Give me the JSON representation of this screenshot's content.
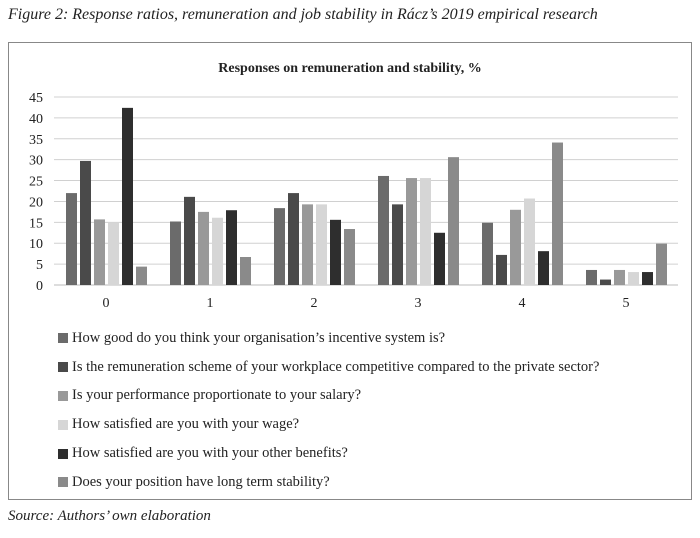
{
  "caption": "Figure 2: Response ratios, remuneration and job stability in Rácz’s 2019 empirical research",
  "source": "Source: Authors’ own elaboration",
  "chart_data": {
    "type": "bar",
    "title": "Responses on remuneration and stability, %",
    "xlabel": "",
    "ylabel": "",
    "ylim": [
      0,
      45
    ],
    "yticks": [
      0,
      5,
      10,
      15,
      20,
      25,
      30,
      35,
      40,
      45
    ],
    "grid": true,
    "legend_position": "bottom",
    "categories": [
      "0",
      "1",
      "2",
      "3",
      "4",
      "5"
    ],
    "series": [
      {
        "name": "How good do you think your organisation’s incentive system is?",
        "color": "#6b6b6b",
        "values": [
          22.0,
          15.2,
          18.4,
          26.1,
          14.9,
          3.6
        ]
      },
      {
        "name": "Is the remuneration scheme of your workplace competitive compared to the private sector?",
        "color": "#4a4a4a",
        "values": [
          29.7,
          21.1,
          22.0,
          19.3,
          7.2,
          1.3
        ]
      },
      {
        "name": "Is your performance proportionate to your salary?",
        "color": "#999999",
        "values": [
          15.7,
          17.5,
          19.3,
          25.6,
          18.0,
          3.6
        ]
      },
      {
        "name": "How satisfied are you with your wage?",
        "color": "#d6d6d6",
        "values": [
          14.9,
          16.1,
          19.3,
          25.6,
          20.7,
          3.1
        ]
      },
      {
        "name": "How satisfied are you with your other benefits?",
        "color": "#2e2e2e",
        "values": [
          42.4,
          17.9,
          15.6,
          12.5,
          8.1,
          3.1
        ]
      },
      {
        "name": "Does your position have long term stability?",
        "color": "#8a8a8a",
        "values": [
          4.4,
          6.7,
          13.4,
          30.6,
          34.1,
          9.9
        ]
      }
    ]
  }
}
